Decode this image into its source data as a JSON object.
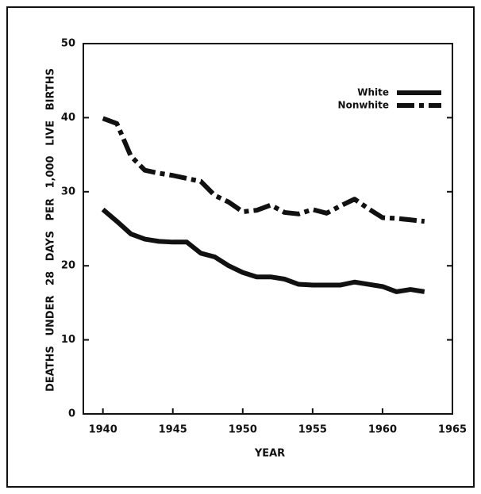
{
  "chart_data": {
    "type": "line",
    "x_label": "YEAR",
    "y_label": "DEATHS UNDER 28 DAYS PER 1,000 LIVE BIRTHS",
    "x": [
      1940,
      1941,
      1942,
      1943,
      1944,
      1945,
      1946,
      1947,
      1948,
      1949,
      1950,
      1951,
      1952,
      1953,
      1954,
      1955,
      1956,
      1957,
      1958,
      1959,
      1960,
      1961,
      1962,
      1963
    ],
    "series": [
      {
        "name": "White",
        "color": "#111111",
        "linestyle": "solid",
        "values": [
          27.6,
          26.0,
          24.3,
          23.6,
          23.3,
          23.2,
          23.2,
          21.7,
          21.2,
          20.0,
          19.1,
          18.5,
          18.5,
          18.2,
          17.5,
          17.4,
          17.4,
          17.4,
          17.8,
          17.5,
          17.2,
          16.5,
          16.8,
          16.5
        ]
      },
      {
        "name": "Nonwhite",
        "color": "#111111",
        "linestyle": "dashed",
        "values": [
          39.9,
          39.2,
          34.8,
          32.9,
          32.5,
          32.2,
          31.8,
          31.4,
          29.5,
          28.6,
          27.3,
          27.5,
          28.2,
          27.2,
          27.0,
          27.6,
          27.1,
          28.1,
          29.0,
          27.7,
          26.5,
          26.4,
          26.2,
          26.0
        ]
      }
    ],
    "xlim": [
      1938.6,
      1965
    ],
    "xticks": [
      1940,
      1945,
      1950,
      1955,
      1960,
      1965
    ],
    "ylim": [
      0,
      50
    ],
    "yticks": [
      0,
      10,
      20,
      30,
      40,
      50
    ],
    "grid": false,
    "legend": "upper right"
  }
}
